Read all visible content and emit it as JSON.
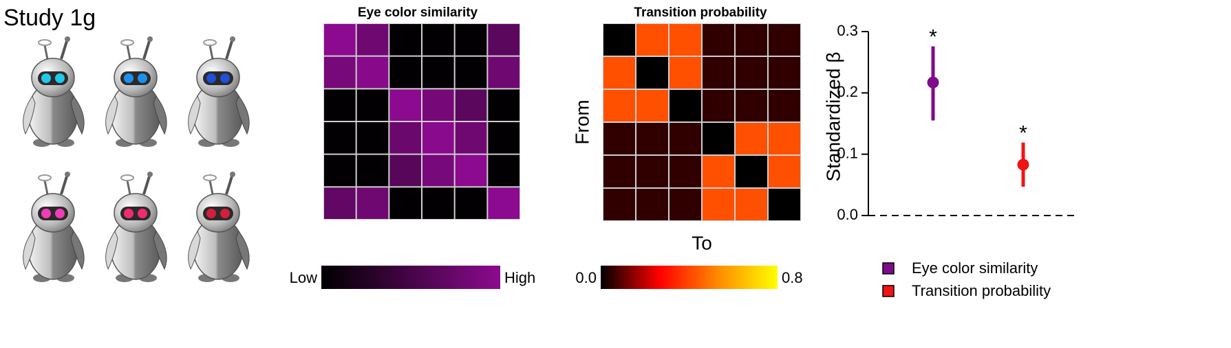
{
  "figure_title": "Study 1g",
  "chart_data": [
    {
      "type": "heatmap",
      "title": "Eye color similarity",
      "matrix": [
        [
          1.0,
          0.8,
          0.02,
          0.02,
          0.02,
          0.65
        ],
        [
          0.85,
          0.97,
          0.02,
          0.02,
          0.02,
          0.8
        ],
        [
          0.02,
          0.02,
          1.0,
          0.84,
          0.65,
          0.02
        ],
        [
          0.02,
          0.02,
          0.76,
          0.98,
          0.8,
          0.02
        ],
        [
          0.02,
          0.02,
          0.63,
          0.86,
          1.0,
          0.02
        ],
        [
          0.7,
          0.8,
          0.02,
          0.02,
          0.02,
          1.0
        ]
      ],
      "colorscale": [
        "#000000",
        "#8c0a8f"
      ],
      "zlim": [
        0,
        1
      ],
      "colorbar_ticks": [
        {
          "value": 0,
          "label": "Low"
        },
        {
          "value": 1,
          "label": "High"
        }
      ]
    },
    {
      "type": "heatmap",
      "title": "Transition probability",
      "xlabel": "To",
      "ylabel": "From",
      "matrix": [
        [
          0,
          0.42,
          0.42,
          0.05,
          0.05,
          0.05
        ],
        [
          0.42,
          0,
          0.42,
          0.05,
          0.05,
          0.05
        ],
        [
          0.42,
          0.42,
          0,
          0.05,
          0.05,
          0.05
        ],
        [
          0.05,
          0.05,
          0.05,
          0,
          0.42,
          0.42
        ],
        [
          0.05,
          0.05,
          0.05,
          0.42,
          0,
          0.42
        ],
        [
          0.05,
          0.05,
          0.05,
          0.42,
          0.42,
          0
        ]
      ],
      "colorscale": [
        "#000000",
        "#ff0000",
        "#ff8c00",
        "#ffff00"
      ],
      "zlim": [
        0,
        0.8
      ],
      "colorbar_ticks": [
        {
          "value": 0,
          "label": "0.0"
        },
        {
          "value": 0.8,
          "label": "0.8"
        }
      ]
    },
    {
      "type": "pointrange",
      "ylabel": "Standardized β",
      "ylim": [
        0,
        0.3
      ],
      "yticks": [
        {
          "value": 0,
          "label": "0.0"
        },
        {
          "value": 0.1,
          "label": "0.1"
        },
        {
          "value": 0.2,
          "label": "0.2"
        },
        {
          "value": 0.3,
          "label": "0.3"
        }
      ],
      "reference_line": 0,
      "legend": "bottom-right",
      "series": [
        {
          "name": "Eye color similarity",
          "color": "#800a8c",
          "value": 0.217,
          "ci_low": 0.155,
          "ci_high": 0.276,
          "annotation": "*"
        },
        {
          "name": "Transition probability",
          "color": "#f01414",
          "value": 0.083,
          "ci_low": 0.047,
          "ci_high": 0.119,
          "annotation": "*"
        }
      ]
    }
  ]
}
